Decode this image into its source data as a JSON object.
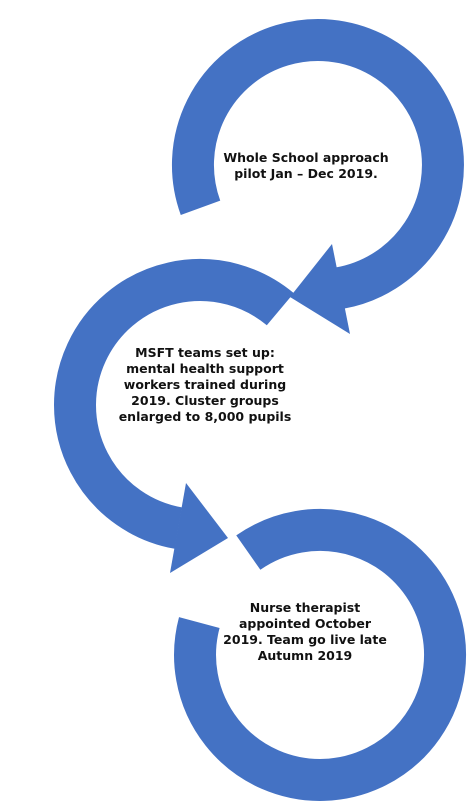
{
  "nodes": [
    {
      "lines": [
        "Whole School approach",
        "pilot Jan – Dec 2019."
      ]
    },
    {
      "lines": [
        "MSFT teams set up:",
        "mental health support",
        "workers trained during",
        "2019. Cluster groups",
        "enlarged to 8,000 pupils"
      ]
    },
    {
      "lines": [
        "Nurse therapist",
        "appointed October",
        "2019.  Team go live late",
        "Autumn 2019"
      ]
    }
  ]
}
